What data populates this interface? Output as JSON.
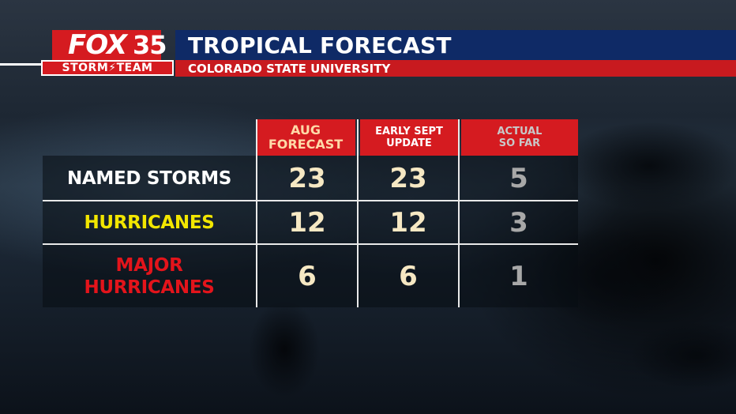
{
  "header": {
    "logo_fox": "FOX",
    "logo_number": "35",
    "logo_team": "STORM⚡TEAM",
    "title": "TROPICAL FORECAST",
    "subtitle": "COLORADO STATE UNIVERSITY"
  },
  "table": {
    "columns": [
      {
        "label_line1": "AUG",
        "label_line2": "FORECAST"
      },
      {
        "label_line1": "EARLY SEPT",
        "label_line2": "UPDATE"
      },
      {
        "label_line1": "ACTUAL",
        "label_line2": "SO FAR"
      }
    ],
    "rows": [
      {
        "label_line1": "NAMED STORMS",
        "label_line2": "",
        "values": [
          "23",
          "23",
          "5"
        ]
      },
      {
        "label_line1": "HURRICANES",
        "label_line2": "",
        "values": [
          "12",
          "12",
          "3"
        ]
      },
      {
        "label_line1": "MAJOR",
        "label_line2": "HURRICANES",
        "values": [
          "6",
          "6",
          "1"
        ]
      }
    ]
  },
  "colors": {
    "brand_red": "#d51b20",
    "title_blue": "#0f2a66",
    "named_storms_label": "#ffffff",
    "hurricanes_label": "#f2e600",
    "major_hurricanes_label": "#e3141b",
    "forecast_numbers": "#f6e8c3",
    "actual_numbers": "#a8a8a8"
  }
}
